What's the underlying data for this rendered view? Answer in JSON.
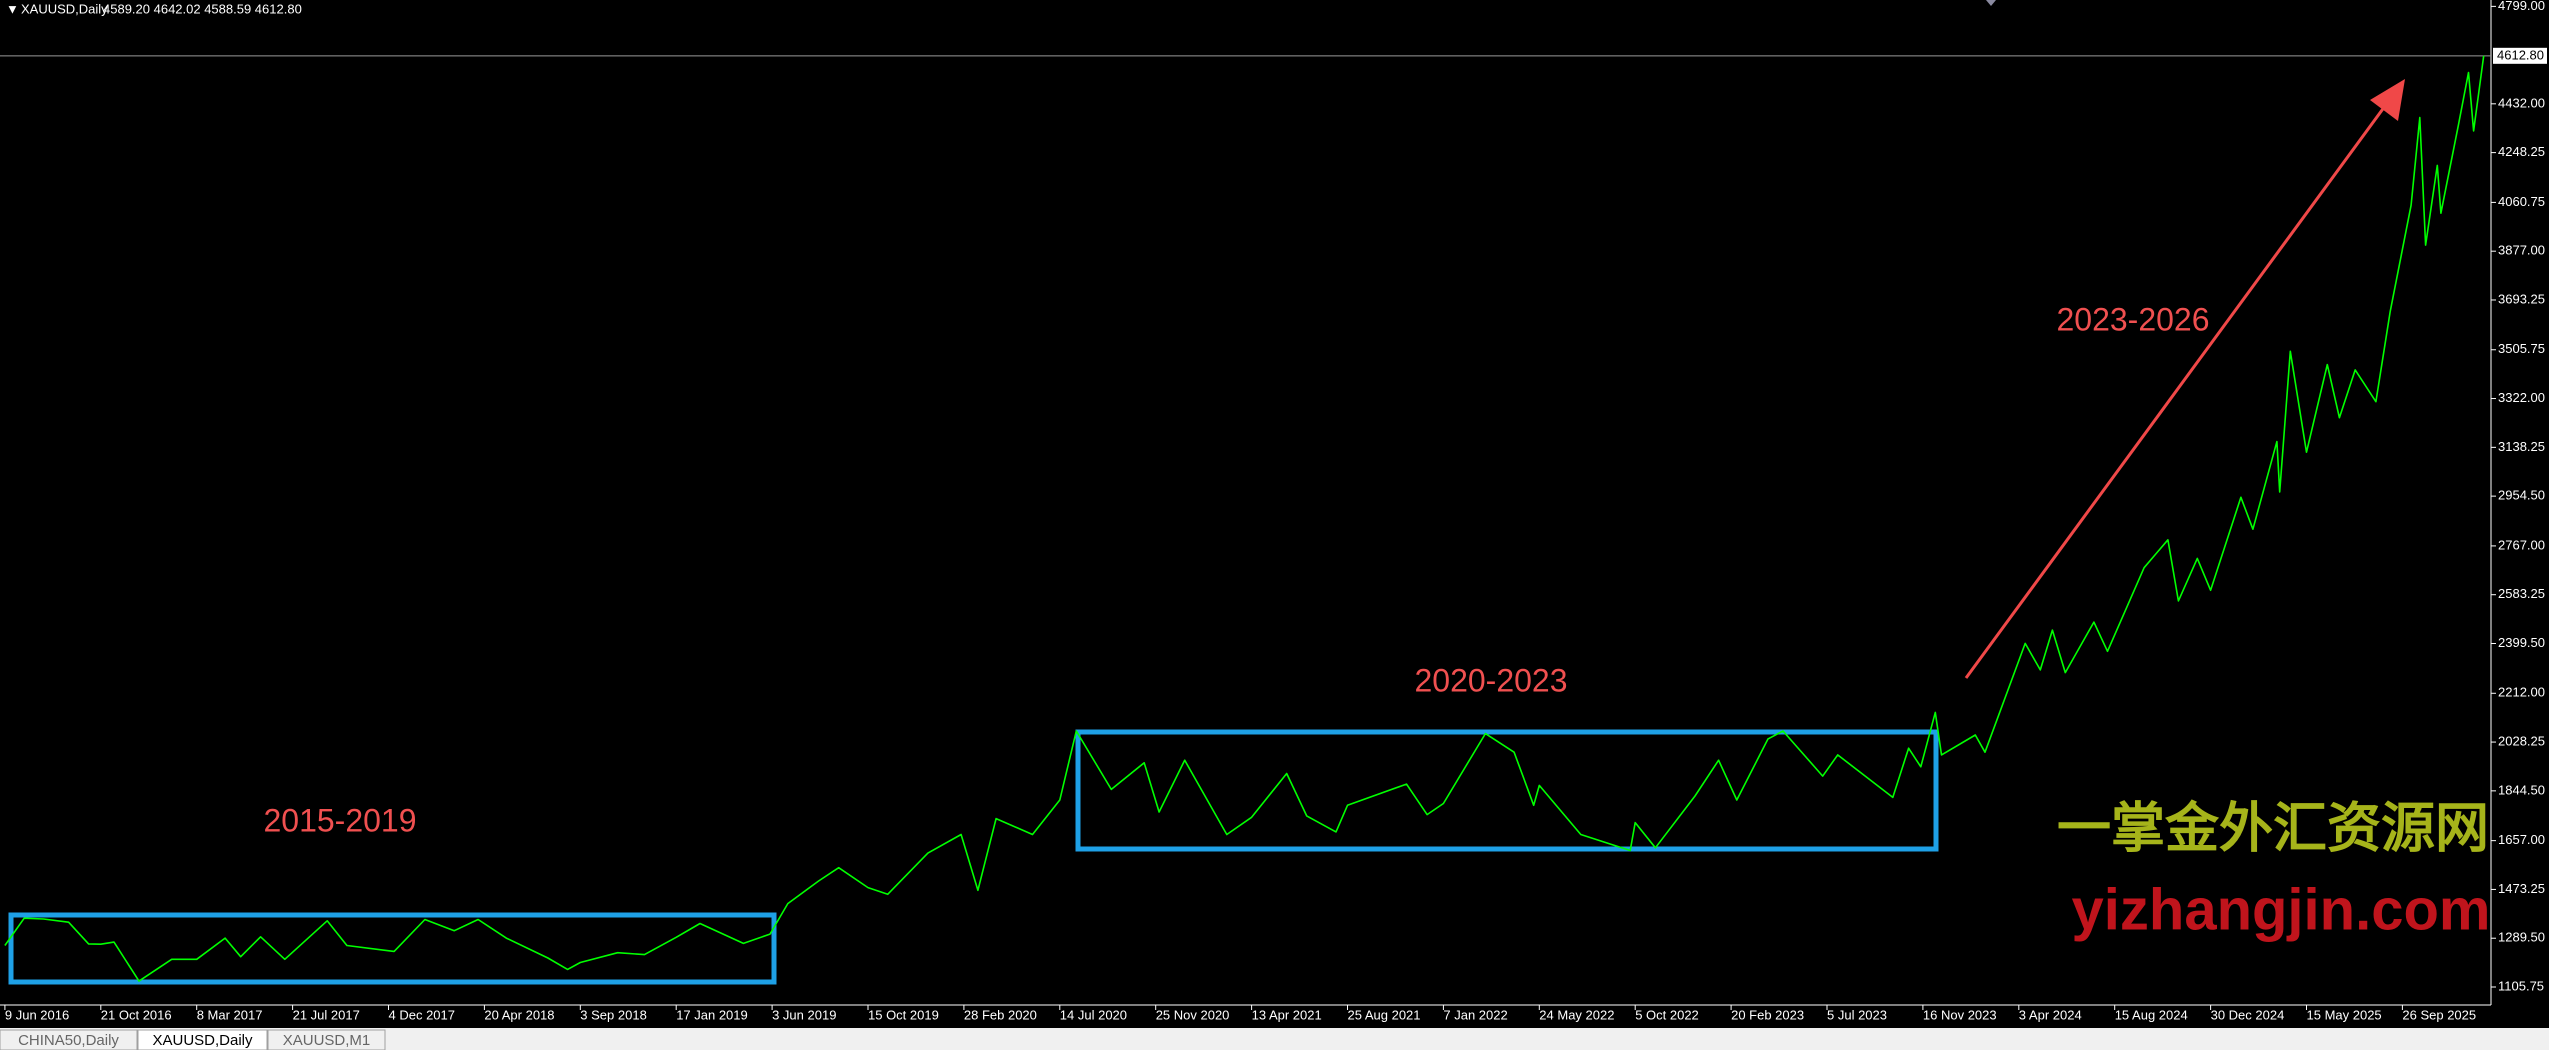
{
  "chart_data": {
    "type": "line",
    "title": "XAUUSD,Daily",
    "subtitle": "4589.20 4642.02 4588.59 4612.80",
    "series": [
      {
        "name": "XAUUSD,Daily",
        "color": "#00ff00",
        "x": [
          "2016-06-09",
          "2016-07-06",
          "2016-08-02",
          "2016-09-06",
          "2016-10-04",
          "2016-10-21",
          "2016-11-09",
          "2016-12-15",
          "2017-01-31",
          "2017-03-08",
          "2017-04-17",
          "2017-05-09",
          "2017-06-06",
          "2017-07-10",
          "2017-09-08",
          "2017-10-06",
          "2017-12-12",
          "2018-01-25",
          "2018-03-08",
          "2018-04-11",
          "2018-05-21",
          "2018-07-19",
          "2018-08-16",
          "2018-09-03",
          "2018-10-26",
          "2018-12-03",
          "2019-01-17",
          "2019-02-20",
          "2019-04-23",
          "2019-05-31",
          "2019-06-25",
          "2019-08-07",
          "2019-09-04",
          "2019-10-15",
          "2019-11-12",
          "2020-01-08",
          "2020-02-24",
          "2020-03-19",
          "2020-04-14",
          "2020-06-05",
          "2020-07-14",
          "2020-08-06",
          "2020-09-24",
          "2020-11-09",
          "2020-11-30",
          "2021-01-06",
          "2021-03-08",
          "2021-04-13",
          "2021-06-01",
          "2021-06-29",
          "2021-08-09",
          "2021-08-25",
          "2021-11-16",
          "2021-12-15",
          "2022-01-07",
          "2022-03-08",
          "2022-04-18",
          "2022-05-16",
          "2022-05-24",
          "2022-07-21",
          "2022-09-28",
          "2022-10-05",
          "2022-11-03",
          "2022-12-30",
          "2023-02-02",
          "2023-02-28",
          "2023-04-13",
          "2023-05-04",
          "2023-06-29",
          "2023-07-20",
          "2023-10-05",
          "2023-10-27",
          "2023-11-13",
          "2023-12-04",
          "2023-12-13",
          "2024-01-31",
          "2024-02-14",
          "2024-04-12",
          "2024-05-03",
          "2024-05-20",
          "2024-06-07",
          "2024-07-17",
          "2024-08-05",
          "2024-09-26",
          "2024-10-30",
          "2024-11-14",
          "2024-12-11",
          "2024-12-30",
          "2025-02-11",
          "2025-02-28",
          "2025-04-03",
          "2025-04-07",
          "2025-04-22",
          "2025-05-15",
          "2025-06-13",
          "2025-06-30",
          "2025-07-22",
          "2025-08-20",
          "2025-09-09",
          "2025-10-08",
          "2025-10-20",
          "2025-10-28",
          "2025-11-13",
          "2025-11-18",
          "2025-12-12",
          "2025-12-26",
          "2026-01-02",
          "2026-01-16"
        ],
        "values": [
          1262,
          1365,
          1362,
          1350,
          1268,
          1267,
          1275,
          1128,
          1210,
          1210,
          1290,
          1220,
          1295,
          1210,
          1355,
          1262,
          1240,
          1360,
          1318,
          1360,
          1290,
          1215,
          1172,
          1198,
          1235,
          1228,
          1293,
          1345,
          1270,
          1305,
          1420,
          1505,
          1555,
          1480,
          1455,
          1610,
          1680,
          1470,
          1740,
          1680,
          1810,
          2070,
          1850,
          1950,
          1765,
          1960,
          1680,
          1745,
          1910,
          1750,
          1690,
          1790,
          1870,
          1755,
          1797,
          2060,
          1990,
          1790,
          1865,
          1680,
          1620,
          1725,
          1630,
          1825,
          1960,
          1810,
          2040,
          2070,
          1900,
          1980,
          1820,
          2005,
          1935,
          2140,
          1980,
          2055,
          1990,
          2400,
          2300,
          2450,
          2290,
          2480,
          2370,
          2685,
          2790,
          2560,
          2720,
          2600,
          2950,
          2830,
          3160,
          2970,
          3500,
          3120,
          3450,
          3250,
          3430,
          3310,
          3650,
          4050,
          4380,
          3900,
          4200,
          4020,
          4350,
          4550,
          4330,
          4612.8
        ]
      }
    ],
    "xlim": [
      "2016-06-07",
      "2026-01-26"
    ],
    "xticks": [
      {
        "value": "2016-06-09",
        "label": "9 Jun 2016"
      },
      {
        "value": "2016-10-21",
        "label": "21 Oct 2016"
      },
      {
        "value": "2017-03-08",
        "label": "8 Mar 2017"
      },
      {
        "value": "2017-07-21",
        "label": "21 Jul 2017"
      },
      {
        "value": "2017-12-04",
        "label": "4 Dec 2017"
      },
      {
        "value": "2018-04-20",
        "label": "20 Apr 2018"
      },
      {
        "value": "2018-09-03",
        "label": "3 Sep 2018"
      },
      {
        "value": "2019-01-17",
        "label": "17 Jan 2019"
      },
      {
        "value": "2019-06-03",
        "label": "3 Jun 2019"
      },
      {
        "value": "2019-10-15",
        "label": "15 Oct 2019"
      },
      {
        "value": "2020-02-28",
        "label": "28 Feb 2020"
      },
      {
        "value": "2020-07-14",
        "label": "14 Jul 2020"
      },
      {
        "value": "2020-11-25",
        "label": "25 Nov 2020"
      },
      {
        "value": "2021-04-13",
        "label": "13 Apr 2021"
      },
      {
        "value": "2021-08-25",
        "label": "25 Aug 2021"
      },
      {
        "value": "2022-01-07",
        "label": "7 Jan 2022"
      },
      {
        "value": "2022-05-24",
        "label": "24 May 2022"
      },
      {
        "value": "2022-10-05",
        "label": "5 Oct 2022"
      },
      {
        "value": "2023-02-20",
        "label": "20 Feb 2023"
      },
      {
        "value": "2023-07-05",
        "label": "5 Jul 2023"
      },
      {
        "value": "2023-11-16",
        "label": "16 Nov 2023"
      },
      {
        "value": "2024-04-03",
        "label": "3 Apr 2024"
      },
      {
        "value": "2024-08-15",
        "label": "15 Aug 2024"
      },
      {
        "value": "2024-12-30",
        "label": "30 Dec 2024"
      },
      {
        "value": "2025-05-15",
        "label": "15 May 2025"
      },
      {
        "value": "2025-09-26",
        "label": "26 Sep 2025"
      }
    ],
    "ylim": [
      1038,
      4823
    ],
    "yticks": [
      {
        "value": 4799,
        "label": "4799.00"
      },
      {
        "value": 4432,
        "label": "4432.00"
      },
      {
        "value": 4248.25,
        "label": "4248.25"
      },
      {
        "value": 4060.75,
        "label": "4060.75"
      },
      {
        "value": 3877,
        "label": "3877.00"
      },
      {
        "value": 3693.25,
        "label": "3693.25"
      },
      {
        "value": 3505.75,
        "label": "3505.75"
      },
      {
        "value": 3322,
        "label": "3322.00"
      },
      {
        "value": 3138.25,
        "label": "3138.25"
      },
      {
        "value": 2954.5,
        "label": "2954.50"
      },
      {
        "value": 2767,
        "label": "2767.00"
      },
      {
        "value": 2583.25,
        "label": "2583.25"
      },
      {
        "value": 2399.5,
        "label": "2399.50"
      },
      {
        "value": 2212,
        "label": "2212.00"
      },
      {
        "value": 2028.25,
        "label": "2028.25"
      },
      {
        "value": 1844.5,
        "label": "1844.50"
      },
      {
        "value": 1657,
        "label": "1657.00"
      },
      {
        "value": 1473.25,
        "label": "1473.25"
      },
      {
        "value": 1289.5,
        "label": "1289.50"
      },
      {
        "value": 1105.75,
        "label": "1105.75"
      }
    ],
    "last_price": {
      "value": 4612.8,
      "label": "4612.80"
    },
    "grid": false,
    "annotations": [
      "2015-2019",
      "2020-2023",
      "2023-2026"
    ],
    "watermark": [
      "一掌金外汇资源网",
      "yizhangjin.com"
    ]
  },
  "tabs": [
    "CHINA50,Daily",
    "XAUUSD,Daily",
    "XAUUSD,M1"
  ],
  "active_tab": 1
}
